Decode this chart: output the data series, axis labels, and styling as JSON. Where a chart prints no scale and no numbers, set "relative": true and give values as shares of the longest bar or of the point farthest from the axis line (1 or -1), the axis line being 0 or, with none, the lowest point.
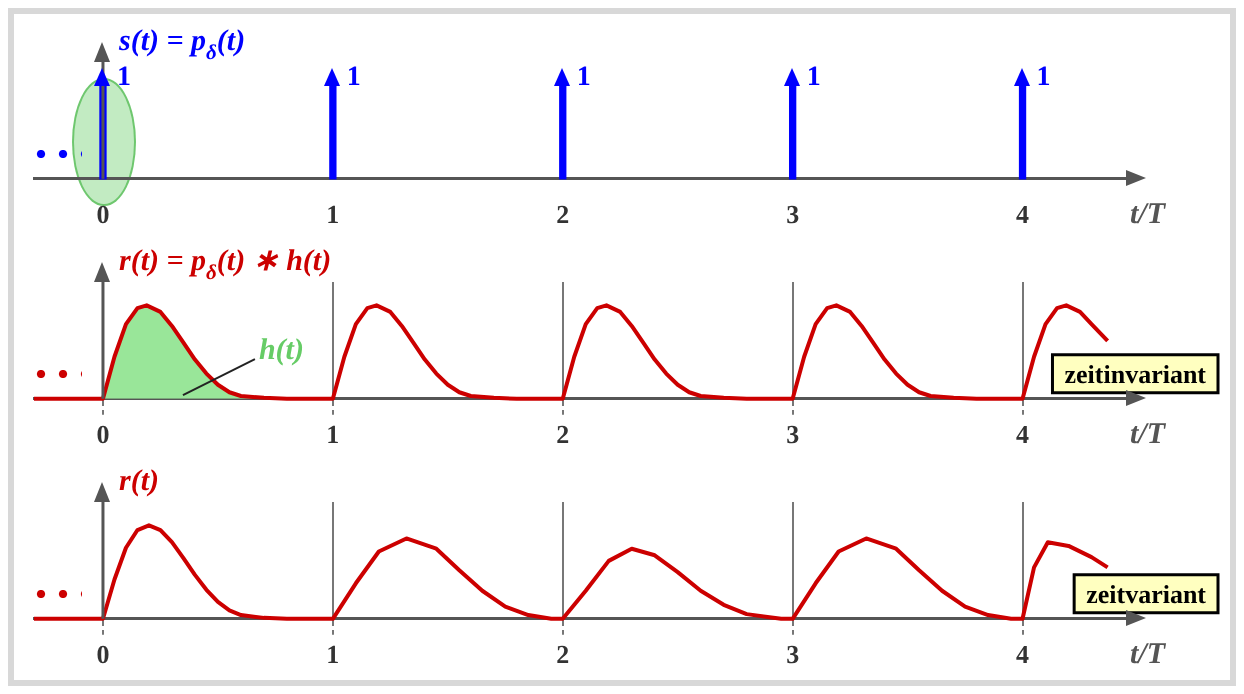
{
  "chart_data": [
    {
      "type": "bar",
      "ylabel": "s(t) = p$_{δ}$(t)",
      "xlabel": "t/T",
      "data_labels": true,
      "tick_labels": "x",
      "legend": false,
      "xlim": [
        -0.3,
        4.45
      ],
      "xticks": [
        0,
        1,
        2,
        3,
        4
      ],
      "series": [
        {
          "color": "#0000ff",
          "x": [
            0,
            1,
            2,
            3,
            4
          ],
          "values": [
            1,
            1,
            1,
            1,
            1
          ]
        }
      ]
    },
    {
      "type": "line",
      "ylabel": "r(t) = p$_{δ}$(t) ∗ h(t)",
      "xlabel": "t/T",
      "relative": true,
      "legend": false,
      "grid": "x",
      "marker": "none",
      "xlim": [
        -0.3,
        4.45
      ],
      "xticks": [
        0,
        1,
        2,
        3,
        4
      ],
      "annotations": [
        "zeitinvariant"
      ],
      "series": [
        {
          "type": "area",
          "name": "h(t)",
          "color": "#99e699",
          "x": [
            0,
            0.05,
            0.1,
            0.15,
            0.19,
            0.25,
            0.3,
            0.35,
            0.4,
            0.45,
            0.5,
            0.55,
            0.6,
            0.7,
            0.8
          ],
          "values": [
            0,
            0.45,
            0.8,
            0.97,
            1,
            0.93,
            0.78,
            0.6,
            0.42,
            0.27,
            0.15,
            0.07,
            0.03,
            0.01,
            0
          ]
        },
        {
          "color": "#cc0000",
          "x": [
            -0.3,
            0,
            0.05,
            0.1,
            0.15,
            0.19,
            0.25,
            0.3,
            0.35,
            0.4,
            0.45,
            0.5,
            0.55,
            0.6,
            0.7,
            0.8,
            1,
            1.05,
            1.1,
            1.15,
            1.19,
            1.25,
            1.3,
            1.35,
            1.4,
            1.45,
            1.5,
            1.55,
            1.6,
            1.7,
            1.8,
            2,
            2.05,
            2.1,
            2.15,
            2.19,
            2.25,
            2.3,
            2.35,
            2.4,
            2.45,
            2.5,
            2.55,
            2.6,
            2.7,
            2.8,
            3,
            3.05,
            3.1,
            3.15,
            3.19,
            3.25,
            3.3,
            3.35,
            3.4,
            3.45,
            3.5,
            3.55,
            3.6,
            3.7,
            3.8,
            4,
            4.05,
            4.1,
            4.15,
            4.19,
            4.25,
            4.3,
            4.37
          ],
          "values": [
            0,
            0,
            0.45,
            0.8,
            0.97,
            1,
            0.93,
            0.78,
            0.6,
            0.42,
            0.27,
            0.15,
            0.07,
            0.03,
            0.01,
            0,
            0,
            0.45,
            0.8,
            0.97,
            1,
            0.93,
            0.78,
            0.6,
            0.42,
            0.27,
            0.15,
            0.07,
            0.03,
            0.01,
            0,
            0,
            0.45,
            0.8,
            0.97,
            1,
            0.93,
            0.78,
            0.6,
            0.42,
            0.27,
            0.15,
            0.07,
            0.03,
            0.01,
            0,
            0,
            0.45,
            0.8,
            0.97,
            1,
            0.93,
            0.78,
            0.6,
            0.42,
            0.27,
            0.15,
            0.07,
            0.03,
            0.01,
            0,
            0,
            0.45,
            0.8,
            0.97,
            1,
            0.93,
            0.8,
            0.62
          ]
        }
      ]
    },
    {
      "type": "line",
      "ylabel": "r(t)",
      "xlabel": "t/T",
      "relative": true,
      "legend": false,
      "grid": "x",
      "marker": "none",
      "xlim": [
        -0.3,
        4.45
      ],
      "xticks": [
        0,
        1,
        2,
        3,
        4
      ],
      "annotations": [
        "zeitvariant"
      ],
      "series": [
        {
          "color": "#cc0000",
          "x": [
            -0.3,
            0,
            0.05,
            0.1,
            0.15,
            0.2,
            0.25,
            0.3,
            0.35,
            0.4,
            0.45,
            0.5,
            0.55,
            0.6,
            0.7,
            0.8,
            1,
            1.1,
            1.2,
            1.32,
            1.45,
            1.55,
            1.65,
            1.75,
            1.85,
            1.95,
            2,
            2.1,
            2.2,
            2.3,
            2.4,
            2.5,
            2.6,
            2.7,
            2.8,
            2.95,
            3,
            3.1,
            3.2,
            3.32,
            3.45,
            3.55,
            3.65,
            3.75,
            3.85,
            3.95,
            4,
            4.05,
            4.11,
            4.2,
            4.3,
            4.37
          ],
          "values": [
            0,
            0,
            0.42,
            0.76,
            0.95,
            1,
            0.95,
            0.82,
            0.65,
            0.47,
            0.31,
            0.18,
            0.09,
            0.04,
            0.01,
            0,
            0,
            0.38,
            0.72,
            0.86,
            0.75,
            0.52,
            0.3,
            0.13,
            0.04,
            0,
            0,
            0.3,
            0.62,
            0.75,
            0.68,
            0.5,
            0.3,
            0.15,
            0.05,
            0,
            0,
            0.38,
            0.72,
            0.86,
            0.75,
            0.52,
            0.3,
            0.13,
            0.04,
            0,
            0,
            0.55,
            0.82,
            0.78,
            0.66,
            0.55
          ]
        }
      ]
    }
  ]
}
